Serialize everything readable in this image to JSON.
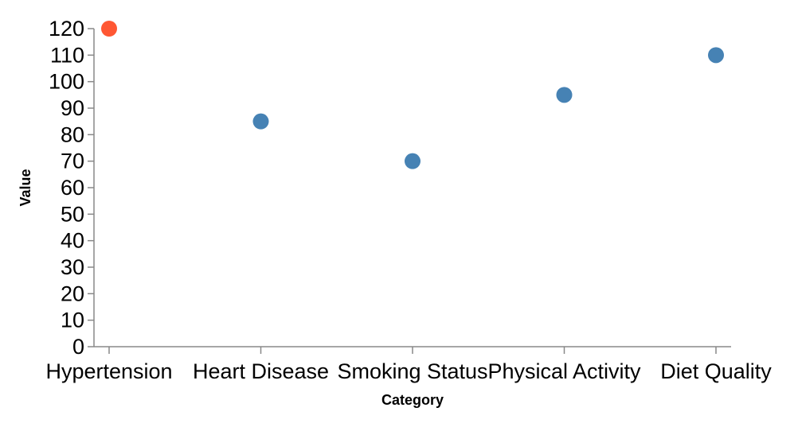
{
  "chart_data": {
    "type": "scatter",
    "title": "",
    "xlabel": "Category",
    "ylabel": "Value",
    "categories": [
      "Hypertension",
      "Heart Disease",
      "Smoking Status",
      "Physical Activity",
      "Diet Quality"
    ],
    "series": [
      {
        "values": [
          120,
          85,
          70,
          95,
          110
        ],
        "point_colors": [
          "#ff5733",
          "#4682b4",
          "#4682b4",
          "#4682b4",
          "#4682b4"
        ]
      }
    ],
    "ylim": [
      0,
      120
    ],
    "yticks": [
      0,
      10,
      20,
      30,
      40,
      50,
      60,
      70,
      80,
      90,
      100,
      110,
      120
    ],
    "grid": false,
    "legend": "none"
  }
}
